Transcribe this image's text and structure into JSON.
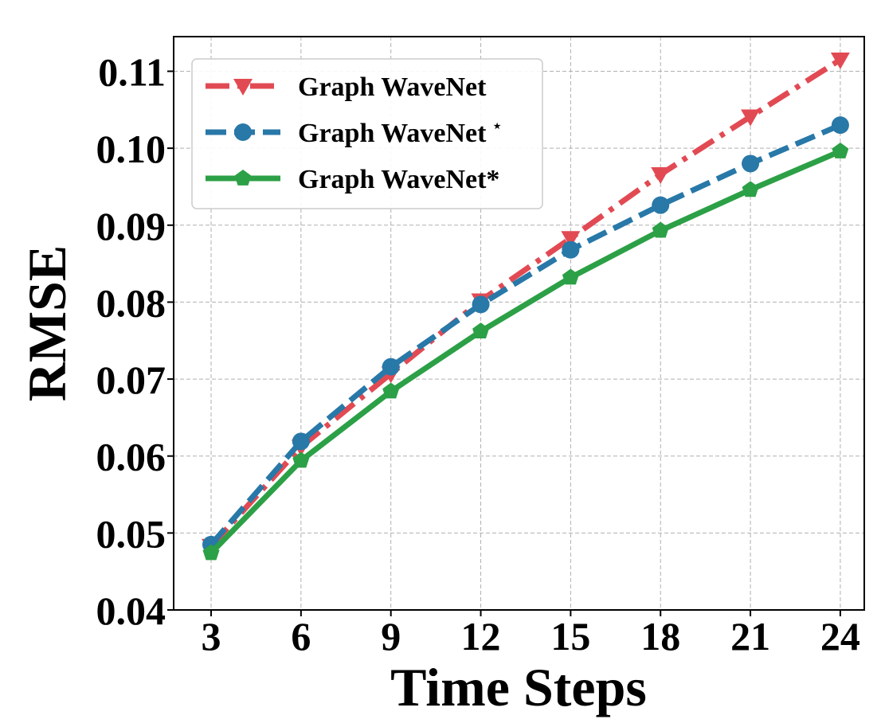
{
  "chart_data": {
    "type": "line",
    "xlabel": "Time Steps",
    "ylabel": "RMSE",
    "x": [
      3,
      6,
      9,
      12,
      15,
      18,
      21,
      24
    ],
    "x_ticks": [
      "3",
      "6",
      "9",
      "12",
      "15",
      "18",
      "21",
      "24"
    ],
    "y_ticks": [
      "0.04",
      "0.05",
      "0.06",
      "0.07",
      "0.08",
      "0.09",
      "0.10",
      "0.11"
    ],
    "ylim": [
      0.04,
      0.1145
    ],
    "xlim": [
      1.75,
      24.8
    ],
    "grid": true,
    "legend_position": "top-left",
    "series": [
      {
        "name": "Graph WaveNet",
        "values": [
          0.0483,
          0.0612,
          0.0707,
          0.0802,
          0.0883,
          0.0966,
          0.1041,
          0.1115
        ],
        "color": "#e24a53",
        "line_style": "dash-dot",
        "marker": "triangle-down"
      },
      {
        "name": "Graph WaveNet",
        "name_suffix": "⋆",
        "values": [
          0.0485,
          0.0619,
          0.0716,
          0.0797,
          0.0868,
          0.0926,
          0.098,
          0.103
        ],
        "color": "#2878a8",
        "line_style": "dashed",
        "marker": "circle"
      },
      {
        "name": "Graph WaveNet*",
        "values": [
          0.0474,
          0.0594,
          0.0684,
          0.0762,
          0.0832,
          0.0893,
          0.0946,
          0.0996
        ],
        "color": "#2ca046",
        "line_style": "solid",
        "marker": "pentagon"
      }
    ]
  }
}
